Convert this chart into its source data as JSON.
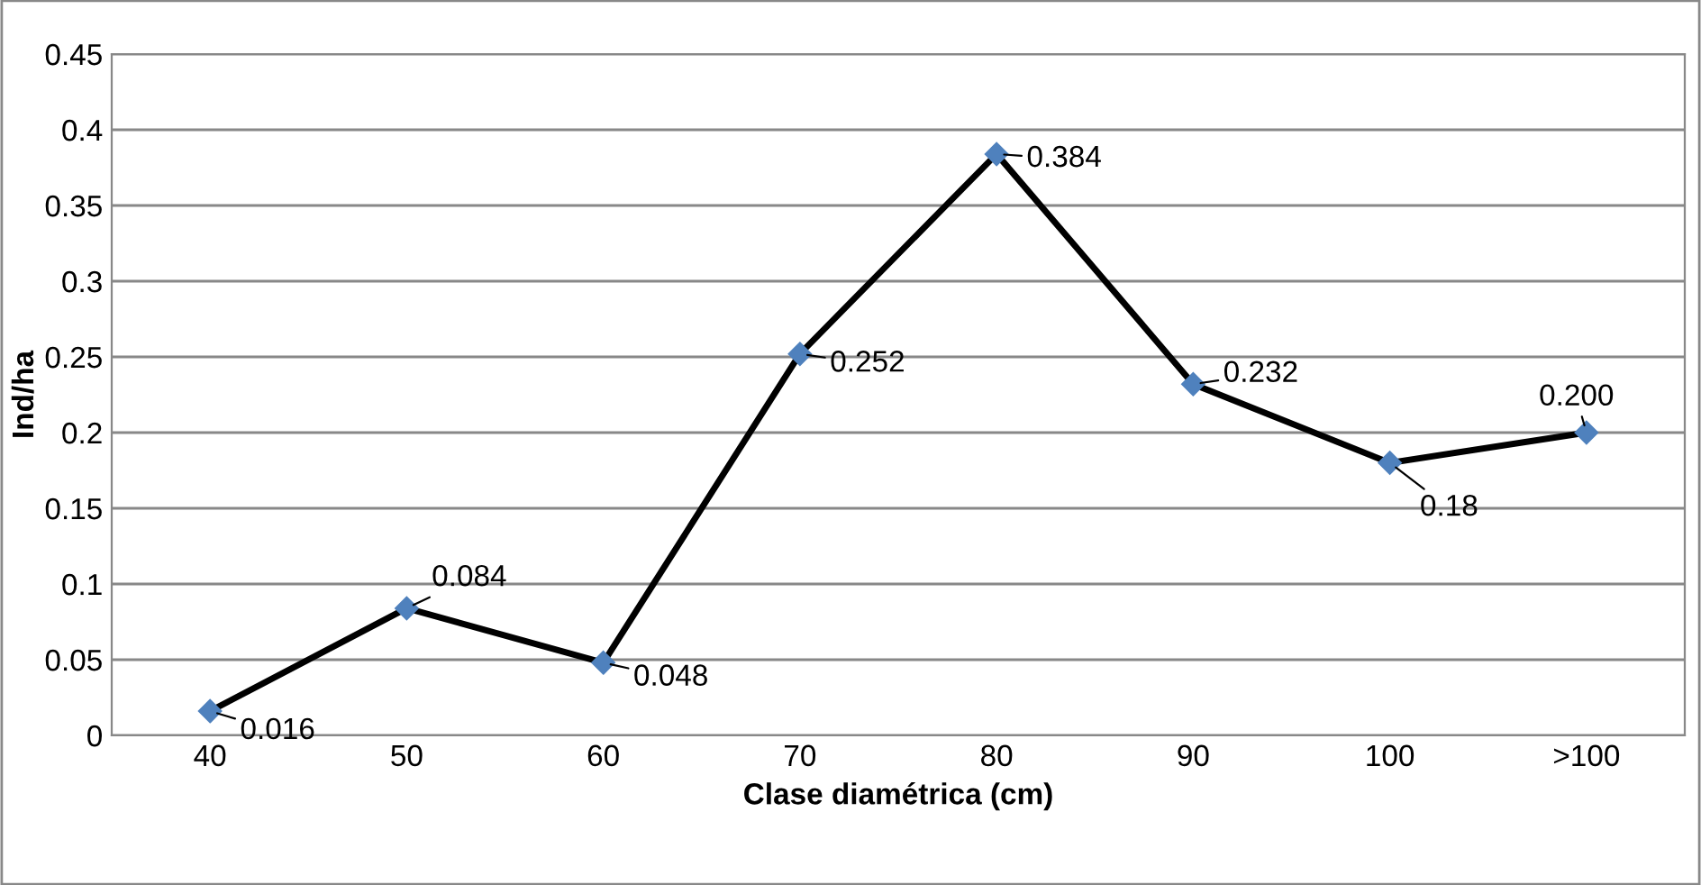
{
  "chart_data": {
    "type": "line",
    "xlabel": "Clase diamétrica (cm)",
    "ylabel": "Ind/ha",
    "categories": [
      "40",
      "50",
      "60",
      "70",
      "80",
      "90",
      "100",
      ">100"
    ],
    "series": [
      {
        "color": "#000000",
        "values": [
          0.016,
          0.084,
          0.048,
          0.252,
          0.384,
          0.232,
          0.18,
          0.2
        ],
        "value_labels": [
          "0.016",
          "0.084",
          "0.048",
          "0.252",
          "0.384",
          "0.232",
          "0.18",
          "0.200"
        ]
      }
    ],
    "ylim": [
      0,
      0.45
    ],
    "yticks": [
      0,
      0.05,
      0.1,
      0.15,
      0.2,
      0.25,
      0.3,
      0.35,
      0.4,
      0.45
    ],
    "grid": "y",
    "marker": "diamond",
    "line_style": "solid",
    "legend": false
  }
}
